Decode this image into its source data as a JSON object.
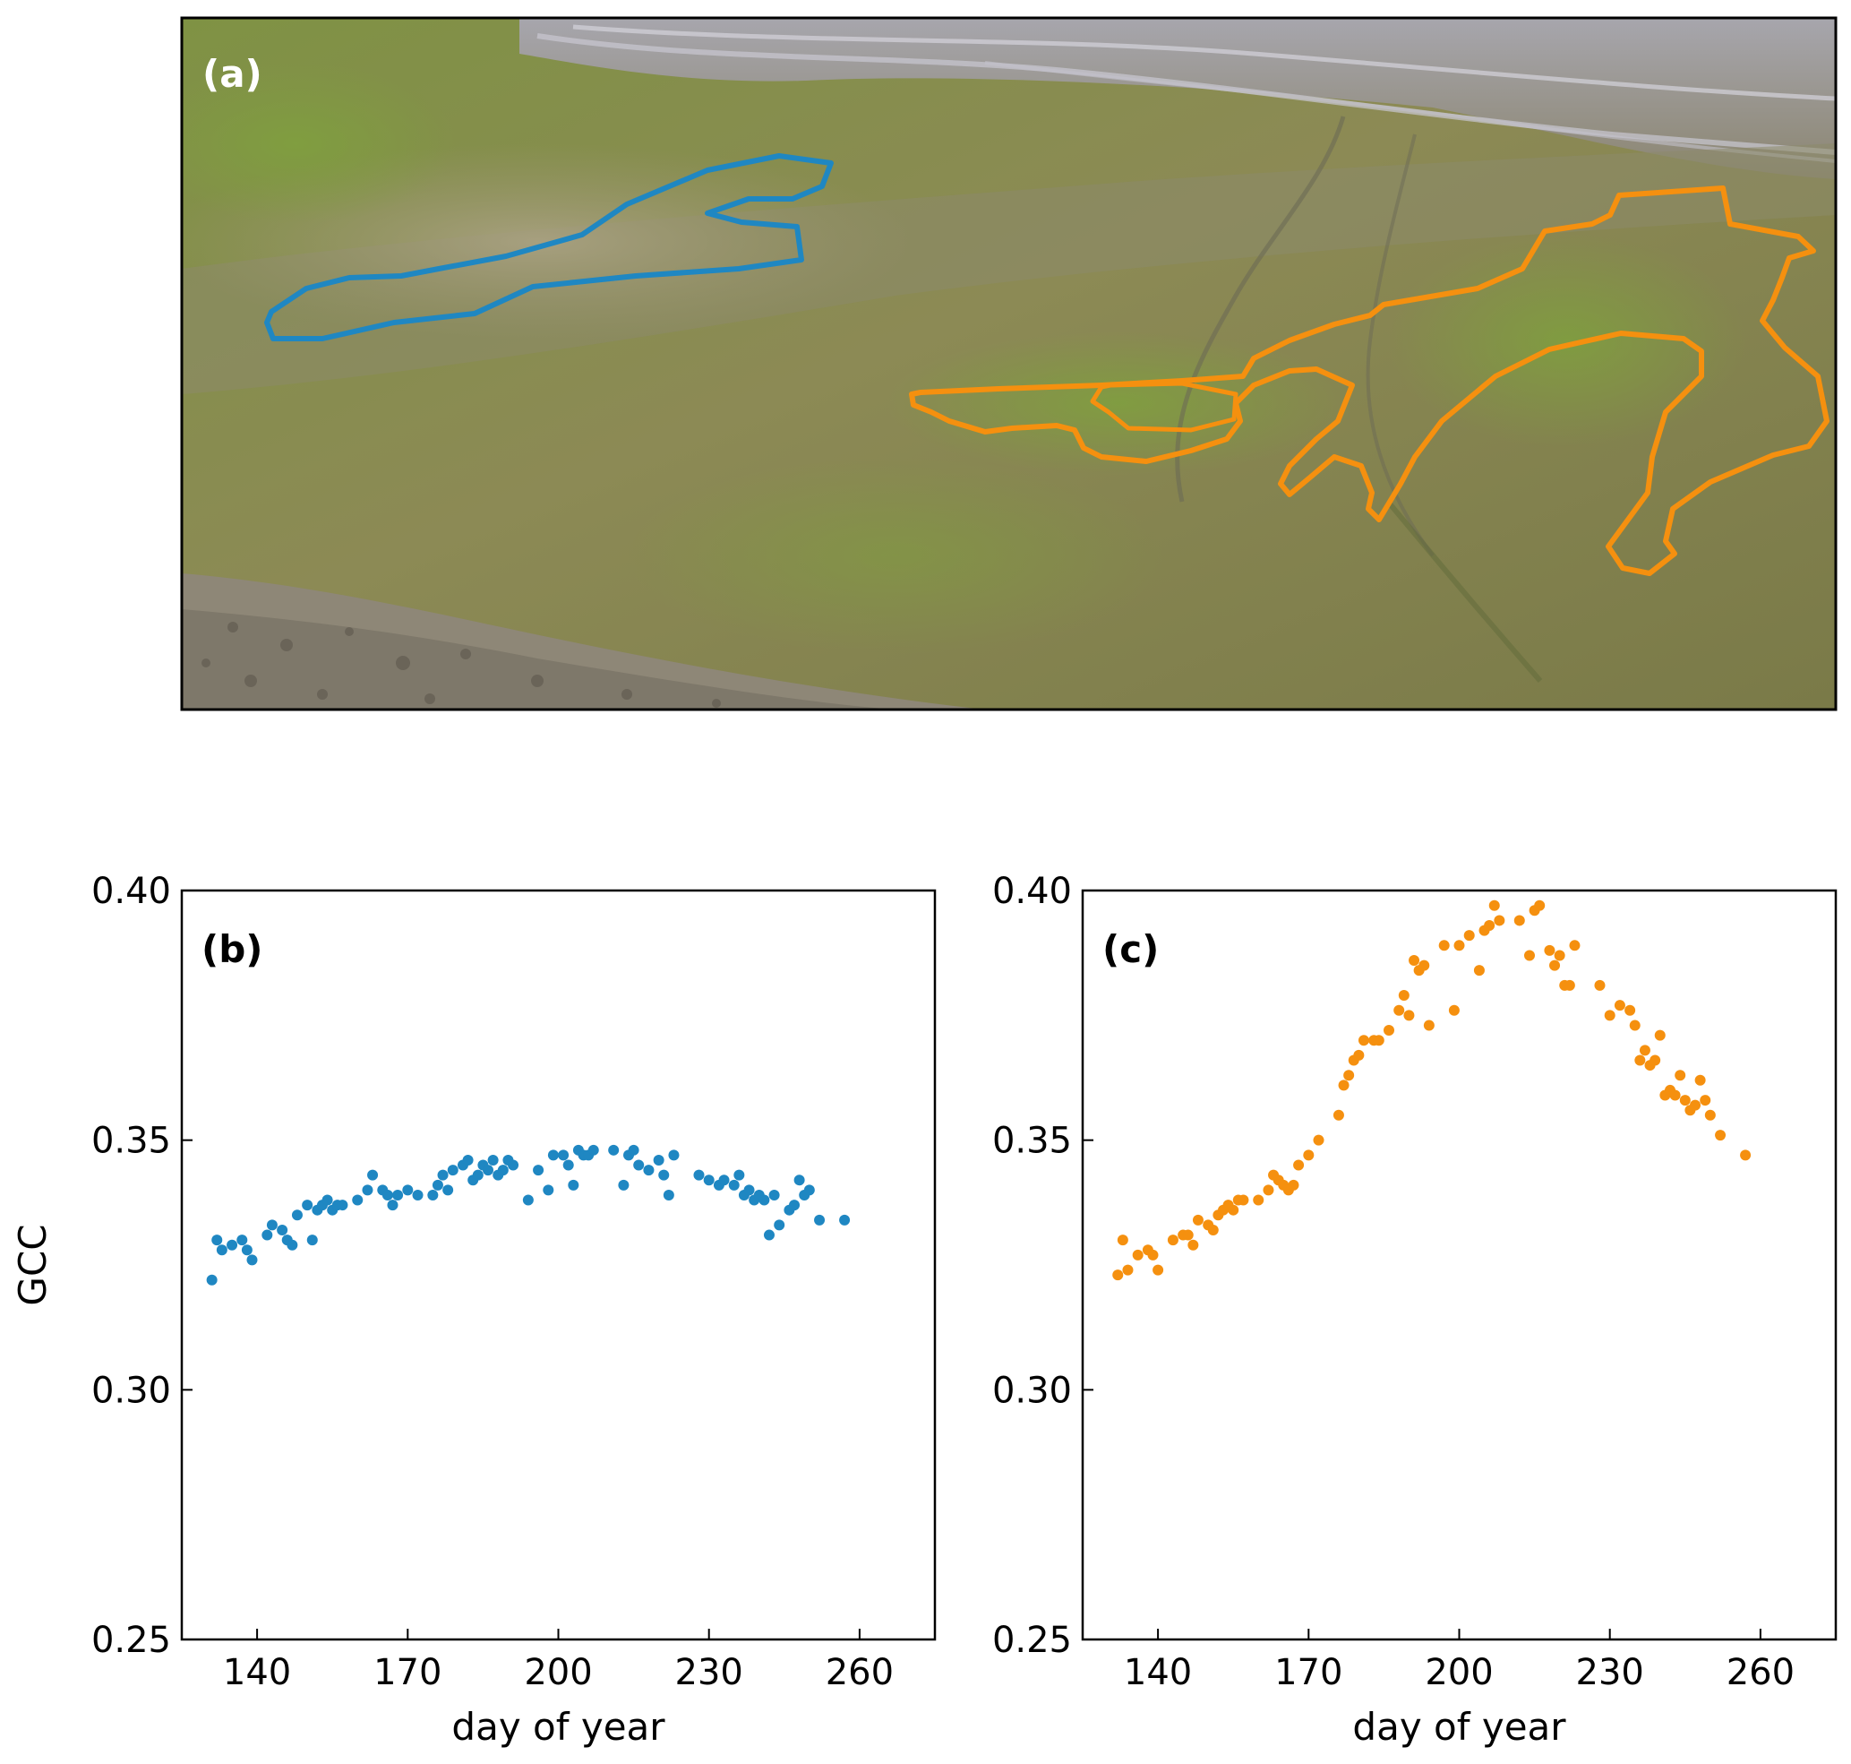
{
  "panels": {
    "a": {
      "label": "(a)"
    }
  },
  "colors": {
    "blue": "#1f87c2",
    "orange": "#f5900f"
  },
  "chart_data": [
    {
      "type": "scatter",
      "panel_label": "(b)",
      "xlabel": "day of year",
      "ylabel": "GCC",
      "xlim": [
        125,
        275
      ],
      "ylim": [
        0.25,
        0.4
      ],
      "xticks": [
        "140",
        "170",
        "200",
        "230",
        "260"
      ],
      "yticks": [
        "0.25",
        "0.30",
        "0.35",
        "0.40"
      ],
      "grid": false,
      "color": "#1f87c2",
      "points": [
        [
          131,
          0.322
        ],
        [
          132,
          0.33
        ],
        [
          133,
          0.328
        ],
        [
          135,
          0.329
        ],
        [
          137,
          0.33
        ],
        [
          138,
          0.328
        ],
        [
          139,
          0.326
        ],
        [
          142,
          0.331
        ],
        [
          143,
          0.333
        ],
        [
          145,
          0.332
        ],
        [
          146,
          0.33
        ],
        [
          147,
          0.329
        ],
        [
          148,
          0.335
        ],
        [
          150,
          0.337
        ],
        [
          151,
          0.33
        ],
        [
          152,
          0.336
        ],
        [
          153,
          0.337
        ],
        [
          154,
          0.338
        ],
        [
          155,
          0.336
        ],
        [
          156,
          0.337
        ],
        [
          157,
          0.337
        ],
        [
          160,
          0.338
        ],
        [
          162,
          0.34
        ],
        [
          163,
          0.343
        ],
        [
          165,
          0.34
        ],
        [
          166,
          0.339
        ],
        [
          167,
          0.337
        ],
        [
          168,
          0.339
        ],
        [
          170,
          0.34
        ],
        [
          172,
          0.339
        ],
        [
          175,
          0.339
        ],
        [
          176,
          0.341
        ],
        [
          177,
          0.343
        ],
        [
          178,
          0.34
        ],
        [
          179,
          0.344
        ],
        [
          181,
          0.345
        ],
        [
          182,
          0.346
        ],
        [
          183,
          0.342
        ],
        [
          184,
          0.343
        ],
        [
          185,
          0.345
        ],
        [
          186,
          0.344
        ],
        [
          187,
          0.346
        ],
        [
          188,
          0.343
        ],
        [
          189,
          0.344
        ],
        [
          190,
          0.346
        ],
        [
          191,
          0.345
        ],
        [
          194,
          0.338
        ],
        [
          196,
          0.344
        ],
        [
          198,
          0.34
        ],
        [
          199,
          0.347
        ],
        [
          201,
          0.347
        ],
        [
          202,
          0.345
        ],
        [
          203,
          0.341
        ],
        [
          204,
          0.348
        ],
        [
          205,
          0.347
        ],
        [
          206,
          0.347
        ],
        [
          207,
          0.348
        ],
        [
          211,
          0.348
        ],
        [
          213,
          0.341
        ],
        [
          214,
          0.347
        ],
        [
          215,
          0.348
        ],
        [
          216,
          0.345
        ],
        [
          218,
          0.344
        ],
        [
          220,
          0.346
        ],
        [
          221,
          0.343
        ],
        [
          222,
          0.339
        ],
        [
          223,
          0.347
        ],
        [
          228,
          0.343
        ],
        [
          230,
          0.342
        ],
        [
          232,
          0.341
        ],
        [
          233,
          0.342
        ],
        [
          235,
          0.341
        ],
        [
          236,
          0.343
        ],
        [
          237,
          0.339
        ],
        [
          238,
          0.34
        ],
        [
          239,
          0.338
        ],
        [
          240,
          0.339
        ],
        [
          241,
          0.338
        ],
        [
          242,
          0.331
        ],
        [
          243,
          0.339
        ],
        [
          244,
          0.333
        ],
        [
          246,
          0.336
        ],
        [
          247,
          0.337
        ],
        [
          248,
          0.342
        ],
        [
          249,
          0.339
        ],
        [
          250,
          0.34
        ],
        [
          252,
          0.334
        ],
        [
          257,
          0.334
        ]
      ]
    },
    {
      "type": "scatter",
      "panel_label": "(c)",
      "xlabel": "day of year",
      "ylabel": "",
      "xlim": [
        125,
        275
      ],
      "ylim": [
        0.25,
        0.4
      ],
      "xticks": [
        "140",
        "170",
        "200",
        "230",
        "260"
      ],
      "yticks": [
        "0.25",
        "0.30",
        "0.35",
        "0.40"
      ],
      "grid": false,
      "color": "#f5900f",
      "points": [
        [
          132,
          0.323
        ],
        [
          133,
          0.33
        ],
        [
          134,
          0.324
        ],
        [
          136,
          0.327
        ],
        [
          138,
          0.328
        ],
        [
          139,
          0.327
        ],
        [
          140,
          0.324
        ],
        [
          143,
          0.33
        ],
        [
          145,
          0.331
        ],
        [
          146,
          0.331
        ],
        [
          147,
          0.329
        ],
        [
          148,
          0.334
        ],
        [
          150,
          0.333
        ],
        [
          151,
          0.332
        ],
        [
          152,
          0.335
        ],
        [
          153,
          0.336
        ],
        [
          154,
          0.337
        ],
        [
          155,
          0.336
        ],
        [
          156,
          0.338
        ],
        [
          157,
          0.338
        ],
        [
          160,
          0.338
        ],
        [
          162,
          0.34
        ],
        [
          163,
          0.343
        ],
        [
          164,
          0.342
        ],
        [
          165,
          0.341
        ],
        [
          166,
          0.34
        ],
        [
          167,
          0.341
        ],
        [
          168,
          0.345
        ],
        [
          170,
          0.347
        ],
        [
          172,
          0.35
        ],
        [
          176,
          0.355
        ],
        [
          177,
          0.361
        ],
        [
          178,
          0.363
        ],
        [
          179,
          0.366
        ],
        [
          180,
          0.367
        ],
        [
          181,
          0.37
        ],
        [
          183,
          0.37
        ],
        [
          184,
          0.37
        ],
        [
          186,
          0.372
        ],
        [
          188,
          0.376
        ],
        [
          189,
          0.379
        ],
        [
          190,
          0.375
        ],
        [
          191,
          0.386
        ],
        [
          192,
          0.384
        ],
        [
          193,
          0.385
        ],
        [
          194,
          0.373
        ],
        [
          197,
          0.389
        ],
        [
          199,
          0.376
        ],
        [
          200,
          0.389
        ],
        [
          202,
          0.391
        ],
        [
          204,
          0.384
        ],
        [
          205,
          0.392
        ],
        [
          206,
          0.393
        ],
        [
          207,
          0.397
        ],
        [
          208,
          0.394
        ],
        [
          212,
          0.394
        ],
        [
          214,
          0.387
        ],
        [
          215,
          0.396
        ],
        [
          216,
          0.397
        ],
        [
          218,
          0.388
        ],
        [
          219,
          0.385
        ],
        [
          220,
          0.387
        ],
        [
          221,
          0.381
        ],
        [
          222,
          0.381
        ],
        [
          223,
          0.389
        ],
        [
          228,
          0.381
        ],
        [
          230,
          0.375
        ],
        [
          232,
          0.377
        ],
        [
          234,
          0.376
        ],
        [
          235,
          0.373
        ],
        [
          236,
          0.366
        ],
        [
          237,
          0.368
        ],
        [
          238,
          0.365
        ],
        [
          239,
          0.366
        ],
        [
          240,
          0.371
        ],
        [
          241,
          0.359
        ],
        [
          242,
          0.36
        ],
        [
          243,
          0.359
        ],
        [
          244,
          0.363
        ],
        [
          245,
          0.358
        ],
        [
          246,
          0.356
        ],
        [
          247,
          0.357
        ],
        [
          248,
          0.362
        ],
        [
          249,
          0.358
        ],
        [
          250,
          0.355
        ],
        [
          252,
          0.351
        ],
        [
          257,
          0.347
        ]
      ]
    }
  ]
}
